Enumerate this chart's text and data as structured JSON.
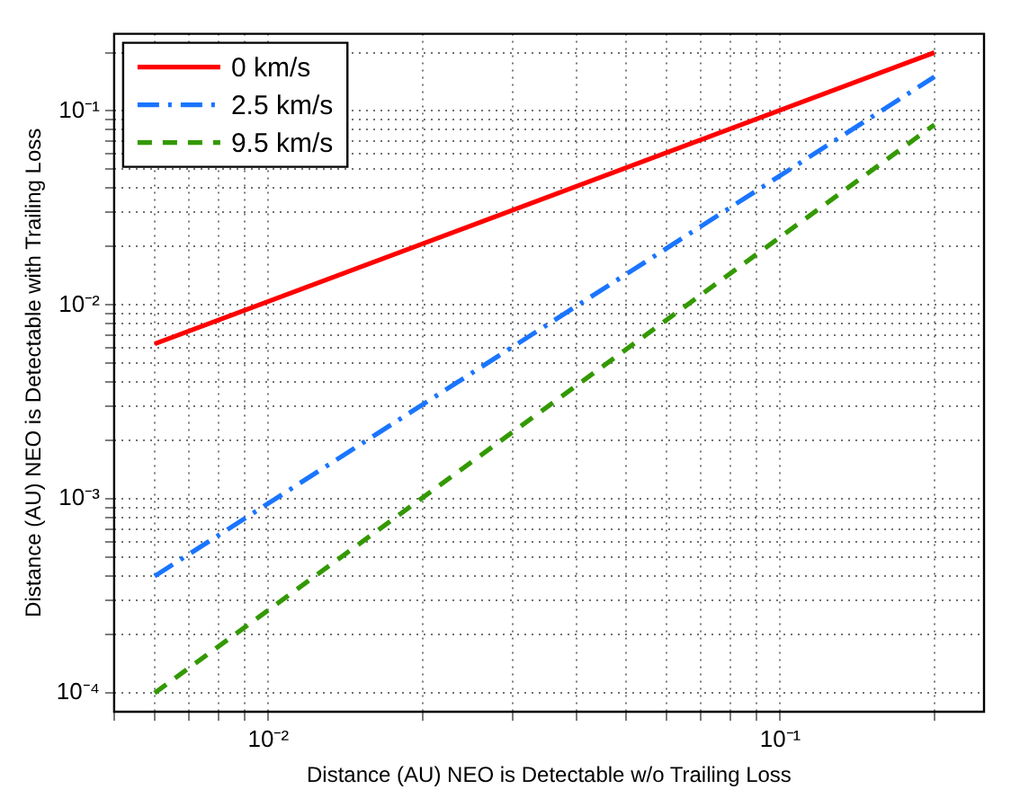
{
  "chart_data": {
    "type": "line",
    "xlabel": "Distance (AU) NEO is Detectable w/o Trailing Loss",
    "ylabel": "Distance (AU) NEO is Detectable with Trailing Loss",
    "log": "xy",
    "grid": true,
    "legend": "top left",
    "marker": "none",
    "xlim": [
      0.005,
      0.25
    ],
    "ylim": [
      8e-05,
      0.25
    ],
    "xticks": [
      {
        "value": 0.005,
        "label": null
      },
      {
        "value": 0.006,
        "label": null
      },
      {
        "value": 0.007,
        "label": null
      },
      {
        "value": 0.008,
        "label": null
      },
      {
        "value": 0.009,
        "label": null
      },
      {
        "value": 0.01,
        "label": "10⁻²"
      },
      {
        "value": 0.02,
        "label": null
      },
      {
        "value": 0.03,
        "label": null
      },
      {
        "value": 0.04,
        "label": null
      },
      {
        "value": 0.05,
        "label": null
      },
      {
        "value": 0.06,
        "label": null
      },
      {
        "value": 0.07,
        "label": null
      },
      {
        "value": 0.08,
        "label": null
      },
      {
        "value": 0.09,
        "label": null
      },
      {
        "value": 0.1,
        "label": "10⁻¹"
      },
      {
        "value": 0.2,
        "label": null
      }
    ],
    "yticks": [
      {
        "value": 0.0001,
        "label": "10⁻⁴"
      },
      {
        "value": 0.0002,
        "label": null
      },
      {
        "value": 0.0003,
        "label": null
      },
      {
        "value": 0.0004,
        "label": null
      },
      {
        "value": 0.0005,
        "label": null
      },
      {
        "value": 0.0006,
        "label": null
      },
      {
        "value": 0.0007,
        "label": null
      },
      {
        "value": 0.0008,
        "label": null
      },
      {
        "value": 0.0009,
        "label": null
      },
      {
        "value": 0.001,
        "label": "10⁻³"
      },
      {
        "value": 0.002,
        "label": null
      },
      {
        "value": 0.003,
        "label": null
      },
      {
        "value": 0.004,
        "label": null
      },
      {
        "value": 0.005,
        "label": null
      },
      {
        "value": 0.006,
        "label": null
      },
      {
        "value": 0.007,
        "label": null
      },
      {
        "value": 0.008,
        "label": null
      },
      {
        "value": 0.009,
        "label": null
      },
      {
        "value": 0.01,
        "label": "10⁻²"
      },
      {
        "value": 0.02,
        "label": null
      },
      {
        "value": 0.03,
        "label": null
      },
      {
        "value": 0.04,
        "label": null
      },
      {
        "value": 0.05,
        "label": null
      },
      {
        "value": 0.06,
        "label": null
      },
      {
        "value": 0.07,
        "label": null
      },
      {
        "value": 0.08,
        "label": null
      },
      {
        "value": 0.09,
        "label": null
      },
      {
        "value": 0.1,
        "label": "10⁻¹"
      },
      {
        "value": 0.2,
        "label": null
      }
    ],
    "x": [
      0.006,
      0.2
    ],
    "series": [
      {
        "name": "0 km/s",
        "color": "#ff0000",
        "line_style": "solid",
        "values": [
          0.0063,
          0.2
        ]
      },
      {
        "name": "2.5 km/s",
        "color": "#1a75ff",
        "line_style": "dashdot",
        "values": [
          0.0004,
          0.15
        ]
      },
      {
        "name": "9.5 km/s",
        "color": "#339900",
        "line_style": "dashed",
        "values": [
          0.0001,
          0.085
        ]
      }
    ]
  }
}
